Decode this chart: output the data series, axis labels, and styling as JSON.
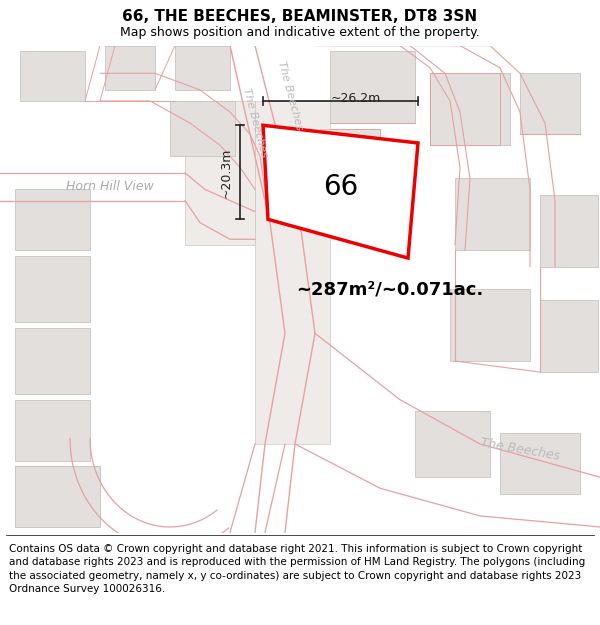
{
  "title": "66, THE BEECHES, BEAMINSTER, DT8 3SN",
  "subtitle": "Map shows position and indicative extent of the property.",
  "footer": "Contains OS data © Crown copyright and database right 2021. This information is subject to Crown copyright and database rights 2023 and is reproduced with the permission of HM Land Registry. The polygons (including the associated geometry, namely x, y co-ordinates) are subject to Crown copyright and database rights 2023 Ordnance Survey 100026316.",
  "map_bg": "#ffffff",
  "road_line_color": "#e8a0a0",
  "road_line_lw": 0.8,
  "bld_fill": "#e2dfdc",
  "bld_edge": "#c8c4c0",
  "plot_edge": "#ee0000",
  "plot_fill": "#ffffff",
  "dim_color": "#222222",
  "lbl_road_color": "#aaaaaa",
  "lbl_hhv_color": "#999999",
  "area_text": "~287m²/~0.071ac.",
  "plot_label": "66",
  "dim_v": "~20.3m",
  "dim_h": "~26.2m",
  "lbl_hhv": "Horn Hill View",
  "lbl_tb_top": "The Beeches",
  "lbl_tb_mid": "The Beeches",
  "lbl_tb_br": "The Beeches",
  "title_fs": 11,
  "subtitle_fs": 9,
  "footer_fs": 7.5
}
